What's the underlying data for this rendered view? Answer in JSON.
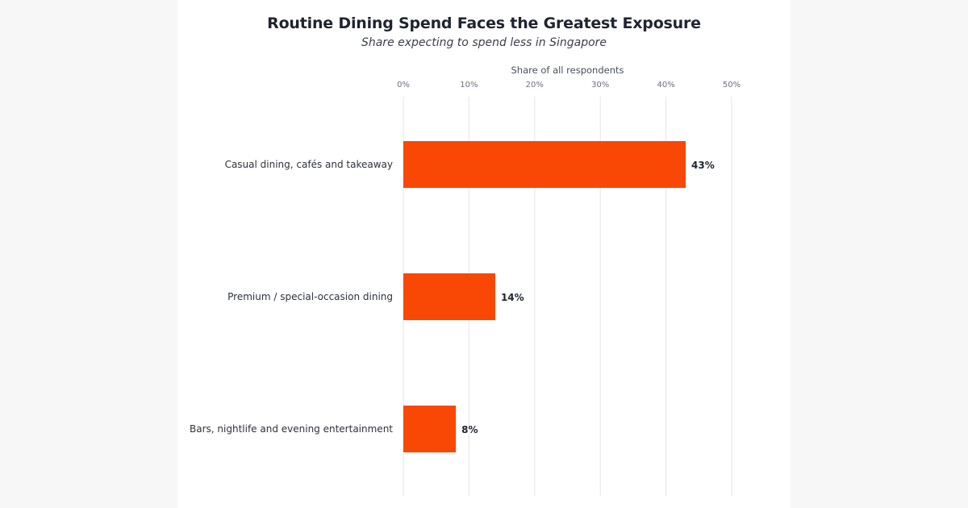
{
  "chart_data": {
    "type": "bar",
    "orientation": "horizontal",
    "title": "Routine Dining Spend Faces the Greatest Exposure",
    "subtitle": "Share expecting to spend less in Singapore",
    "xlabel": "Share of all respondents",
    "ylabel": "",
    "xlim": [
      0,
      50
    ],
    "x_ticks": [
      "0%",
      "10%",
      "20%",
      "30%",
      "40%",
      "50%"
    ],
    "x_tick_values": [
      0,
      10,
      20,
      30,
      40,
      50
    ],
    "grid": "vertical",
    "categories": [
      "Casual dining, cafés and takeaway",
      "Premium / special-occasion dining",
      "Bars, nightlife and evening entertainment"
    ],
    "values": [
      43,
      14,
      8
    ],
    "value_labels": [
      "43%",
      "14%",
      "8%"
    ],
    "bar_color": "#f94706"
  }
}
